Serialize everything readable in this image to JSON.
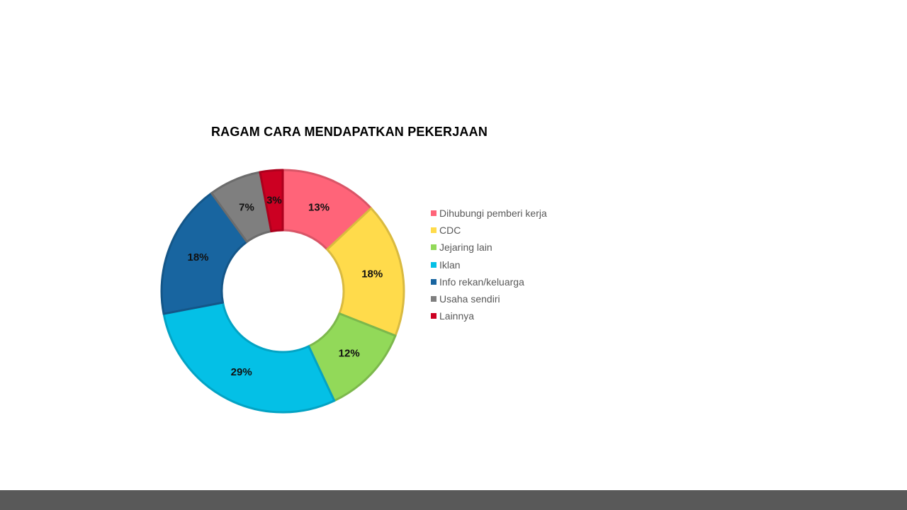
{
  "chart_data": {
    "type": "pie",
    "variant": "donut",
    "title": "RAGAM CARA MENDAPATKAN PEKERJAAN",
    "categories": [
      "Dihubungi pemberi kerja",
      "CDC",
      "Jejaring lain",
      "Iklan",
      "Info rekan/keluarga",
      "Usaha sendiri",
      "Lainnya"
    ],
    "values": [
      13,
      18,
      12,
      29,
      18,
      7,
      3
    ],
    "labels": [
      "13%",
      "18%",
      "12%",
      "29%",
      "18%",
      "7%",
      "3%"
    ],
    "colors": [
      "#ff6479",
      "#ffdb4b",
      "#92d959",
      "#04c0e6",
      "#1865a0",
      "#7f7f7f",
      "#cc0022"
    ],
    "legend_position": "right"
  }
}
